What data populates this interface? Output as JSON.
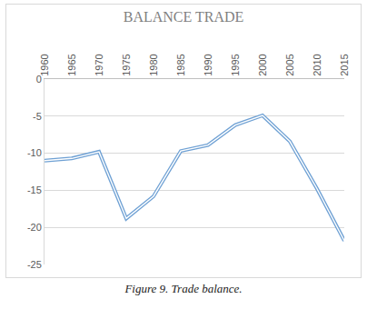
{
  "chart_data": {
    "type": "line",
    "title": "BALANCE TRADE",
    "caption": "Figure 9. Trade balance.",
    "categories": [
      "1960",
      "1965",
      "1970",
      "1975",
      "1980",
      "1985",
      "1990",
      "1995",
      "2000",
      "2005",
      "2010",
      "2015"
    ],
    "values": [
      -11,
      -10.7,
      -9.8,
      -18.8,
      -15.8,
      -9.7,
      -8.9,
      -6.2,
      -4.9,
      -8.4,
      -14.8,
      -21.8
    ],
    "color": "#6fa1d4",
    "ylim": [
      -25,
      0
    ],
    "yticks": [
      -25,
      -20,
      -15,
      -10,
      -5,
      0
    ],
    "grid": true
  }
}
